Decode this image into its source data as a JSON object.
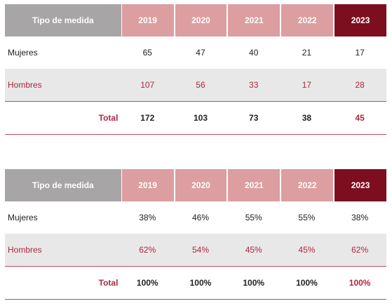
{
  "tables": [
    {
      "header": {
        "label": "Tipo de medida",
        "years": [
          "2019",
          "2020",
          "2021",
          "2022",
          "2023"
        ]
      },
      "rows": [
        {
          "label": "Mujeres",
          "values": [
            "65",
            "47",
            "40",
            "21",
            "17"
          ]
        },
        {
          "label": "Hombres",
          "values": [
            "107",
            "56",
            "33",
            "17",
            "28"
          ]
        }
      ],
      "total": {
        "label": "Total",
        "values": [
          "172",
          "103",
          "73",
          "38",
          "45"
        ]
      }
    },
    {
      "header": {
        "label": "Tipo de medida",
        "years": [
          "2019",
          "2020",
          "2021",
          "2022",
          "2023"
        ]
      },
      "rows": [
        {
          "label": "Mujeres",
          "values": [
            "38%",
            "46%",
            "55%",
            "55%",
            "38%"
          ]
        },
        {
          "label": "Hombres",
          "values": [
            "62%",
            "54%",
            "45%",
            "45%",
            "62%"
          ]
        }
      ],
      "total": {
        "label": "Total",
        "values": [
          "100%",
          "100%",
          "100%",
          "100%",
          "100%"
        ]
      }
    }
  ],
  "colors": {
    "header_label_bg": "#a7a5a6",
    "header_year_bg": "#dc9ea0",
    "header_highlight_bg": "#7d0e20",
    "accent_text": "#b0263e",
    "row_alt_bg": "#e8e8e9"
  }
}
